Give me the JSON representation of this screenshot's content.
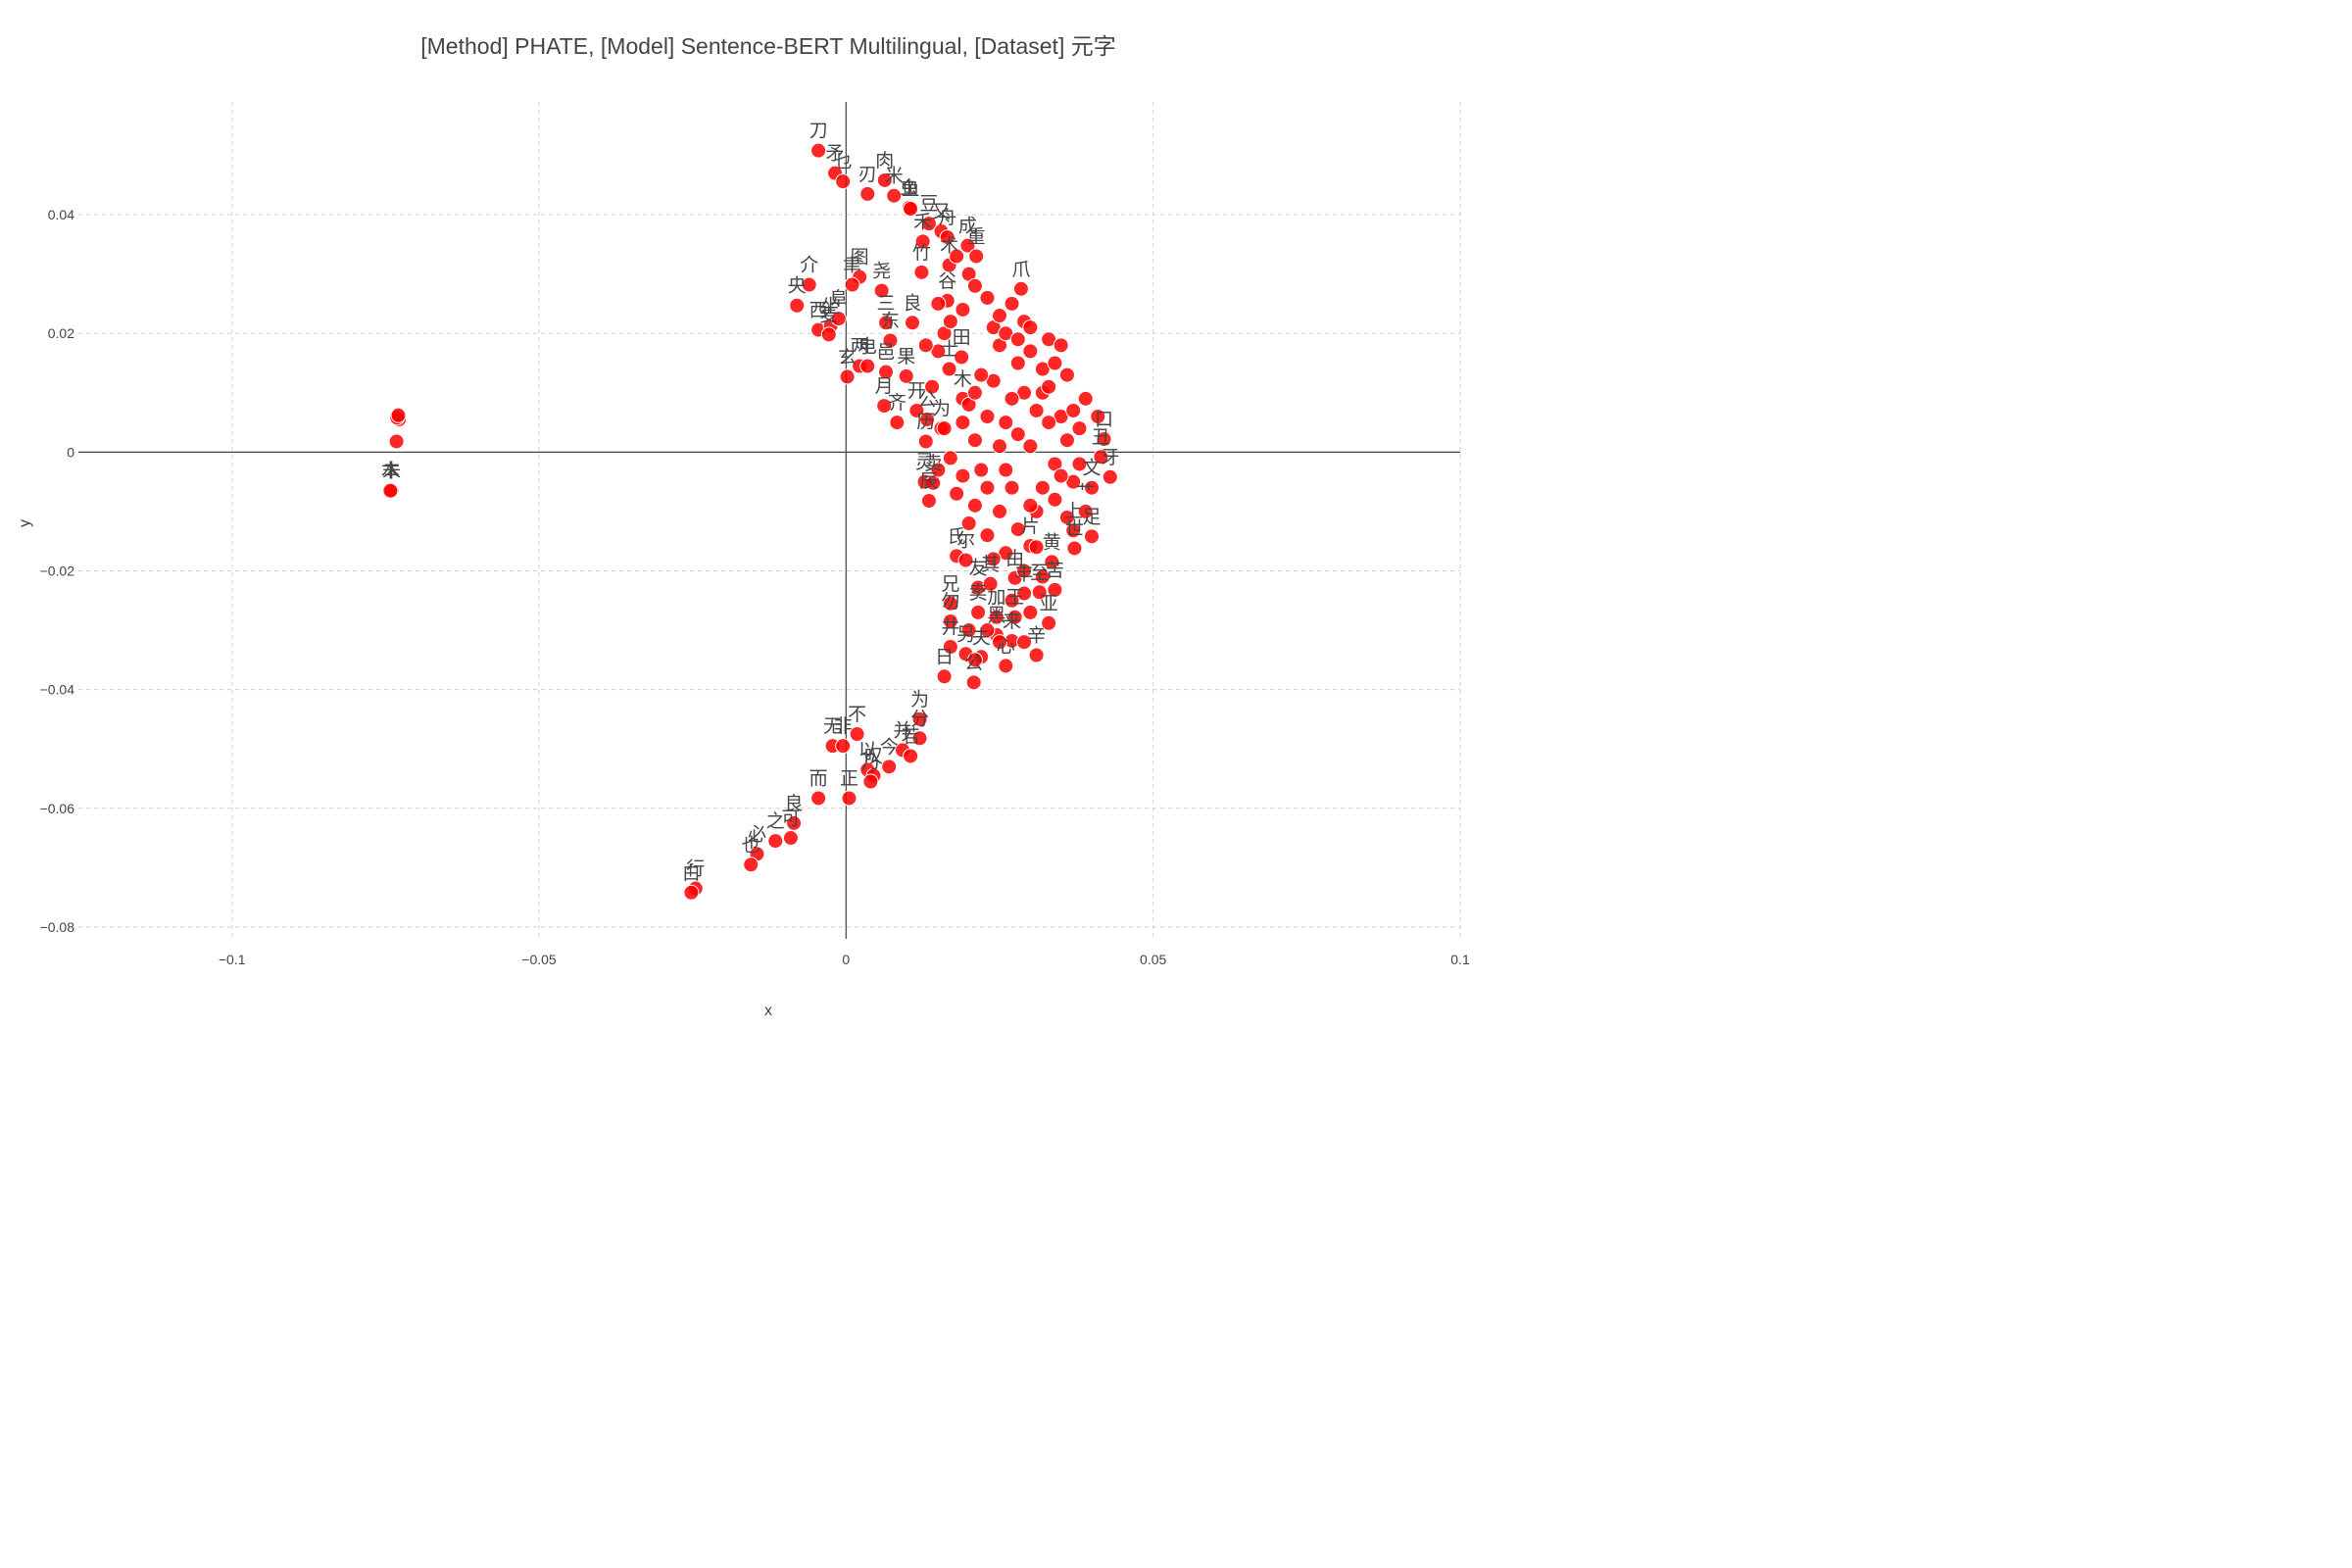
{
  "chart_data": {
    "type": "scatter",
    "title": "[Method] PHATE, [Model] Sentence-BERT Multilingual, [Dataset] 元字",
    "xlabel": "x",
    "ylabel": "y",
    "xlim": [
      -0.125,
      0.1
    ],
    "ylim": [
      -0.082,
      0.059
    ],
    "xticks": [
      -0.1,
      -0.05,
      0,
      0.05,
      0.1
    ],
    "xtick_labels": [
      "−0.1",
      "−0.05",
      "0",
      "0.05",
      "0.1"
    ],
    "yticks": [
      -0.08,
      -0.06,
      -0.04,
      -0.02,
      0,
      0.02,
      0.04
    ],
    "ytick_labels": [
      "−0.08",
      "−0.06",
      "−0.04",
      "−0.02",
      "0",
      "0.02",
      "0.04"
    ],
    "grid": true,
    "marker_color": "#ff0000",
    "points": [
      {
        "label": "刀",
        "x": -0.0045,
        "y": 0.0508
      },
      {
        "label": "矛",
        "x": -0.0018,
        "y": 0.047
      },
      {
        "label": "乜",
        "x": -0.0005,
        "y": 0.0456
      },
      {
        "label": "刃",
        "x": 0.0035,
        "y": 0.0435
      },
      {
        "label": "肉",
        "x": 0.0063,
        "y": 0.0458
      },
      {
        "label": "米",
        "x": 0.0078,
        "y": 0.0432
      },
      {
        "label": "虫",
        "x": 0.0103,
        "y": 0.0412
      },
      {
        "label": "鱼",
        "x": 0.0105,
        "y": 0.041
      },
      {
        "label": "豆",
        "x": 0.0135,
        "y": 0.0385
      },
      {
        "label": "禾",
        "x": 0.0125,
        "y": 0.0355
      },
      {
        "label": "又",
        "x": 0.0155,
        "y": 0.0372
      },
      {
        "label": "舟",
        "x": 0.0165,
        "y": 0.0362
      },
      {
        "label": "竹",
        "x": 0.0123,
        "y": 0.0303
      },
      {
        "label": "术",
        "x": 0.0168,
        "y": 0.0315
      },
      {
        "label": "成",
        "x": 0.0198,
        "y": 0.0348
      },
      {
        "label": "重",
        "x": 0.0212,
        "y": 0.033
      },
      {
        "label": "爪",
        "x": 0.0285,
        "y": 0.0275
      },
      {
        "label": "谷",
        "x": 0.0165,
        "y": 0.0255
      },
      {
        "label": "良",
        "x": 0.0108,
        "y": 0.0218
      },
      {
        "label": "介",
        "x": -0.006,
        "y": 0.0282
      },
      {
        "label": "央",
        "x": -0.008,
        "y": 0.0247
      },
      {
        "label": "西",
        "x": -0.0045,
        "y": 0.0206
      },
      {
        "label": "坐",
        "x": -0.0025,
        "y": 0.0213
      },
      {
        "label": "阜",
        "x": -0.0012,
        "y": 0.0225
      },
      {
        "label": "麦",
        "x": -0.0028,
        "y": 0.0198
      },
      {
        "label": "图",
        "x": 0.0022,
        "y": 0.0295
      },
      {
        "label": "聿",
        "x": 0.001,
        "y": 0.0282
      },
      {
        "label": "尧",
        "x": 0.0058,
        "y": 0.0272
      },
      {
        "label": "三",
        "x": 0.0065,
        "y": 0.0218
      },
      {
        "label": "东",
        "x": 0.0072,
        "y": 0.0188
      },
      {
        "label": "两",
        "x": 0.0022,
        "y": 0.0145
      },
      {
        "label": "电",
        "x": 0.0035,
        "y": 0.0145
      },
      {
        "label": "玄",
        "x": 0.0002,
        "y": 0.0127
      },
      {
        "label": "邑",
        "x": 0.0065,
        "y": 0.0135
      },
      {
        "label": "果",
        "x": 0.0098,
        "y": 0.0128
      },
      {
        "label": "月",
        "x": 0.0062,
        "y": 0.0078
      },
      {
        "label": "齐",
        "x": 0.0083,
        "y": 0.005
      },
      {
        "label": "开",
        "x": 0.0115,
        "y": 0.007
      },
      {
        "label": "公",
        "x": 0.0132,
        "y": 0.0055
      },
      {
        "label": "历",
        "x": 0.013,
        "y": 0.0018
      },
      {
        "label": "灵",
        "x": 0.0128,
        "y": -0.005
      },
      {
        "label": "辰",
        "x": 0.0135,
        "y": -0.0082
      },
      {
        "label": "卖",
        "x": 0.0142,
        "y": -0.0052
      },
      {
        "label": "为",
        "x": 0.0155,
        "y": 0.004
      },
      {
        "label": "木",
        "x": 0.019,
        "y": 0.009
      },
      {
        "label": "田",
        "x": 0.0188,
        "y": 0.016
      },
      {
        "label": "士",
        "x": 0.0168,
        "y": 0.014
      },
      {
        "label": "口",
        "x": 0.042,
        "y": 0.0022
      },
      {
        "label": "丑",
        "x": 0.0415,
        "y": -0.0008
      },
      {
        "label": "牙",
        "x": 0.043,
        "y": -0.0042
      },
      {
        "label": "文",
        "x": 0.04,
        "y": -0.006
      },
      {
        "label": "艹",
        "x": 0.039,
        "y": -0.01
      },
      {
        "label": "上",
        "x": 0.037,
        "y": -0.0132
      },
      {
        "label": "足",
        "x": 0.04,
        "y": -0.0142
      },
      {
        "label": "世",
        "x": 0.0372,
        "y": -0.0162
      },
      {
        "label": "黄",
        "x": 0.0335,
        "y": -0.0185
      },
      {
        "label": "片",
        "x": 0.03,
        "y": -0.0158
      },
      {
        "label": "氏",
        "x": 0.018,
        "y": -0.0175
      },
      {
        "label": "尔",
        "x": 0.0195,
        "y": -0.0182
      },
      {
        "label": "由",
        "x": 0.0275,
        "y": -0.0212
      },
      {
        "label": "友",
        "x": 0.0215,
        "y": -0.0228
      },
      {
        "label": "其",
        "x": 0.0235,
        "y": -0.0222
      },
      {
        "label": "丰",
        "x": 0.029,
        "y": -0.0238
      },
      {
        "label": "至",
        "x": 0.0315,
        "y": -0.0236
      },
      {
        "label": "苦",
        "x": 0.034,
        "y": -0.0232
      },
      {
        "label": "兄",
        "x": 0.017,
        "y": -0.0255
      },
      {
        "label": "勿",
        "x": 0.017,
        "y": -0.0285
      },
      {
        "label": "卖",
        "x": 0.0215,
        "y": -0.027
      },
      {
        "label": "加",
        "x": 0.0245,
        "y": -0.0278
      },
      {
        "label": "王",
        "x": 0.0275,
        "y": -0.0278
      },
      {
        "label": "亚",
        "x": 0.033,
        "y": -0.0288
      },
      {
        "label": "黑",
        "x": 0.0245,
        "y": -0.0308
      },
      {
        "label": "来",
        "x": 0.027,
        "y": -0.0318
      },
      {
        "label": "井",
        "x": 0.017,
        "y": -0.0328
      },
      {
        "label": "另",
        "x": 0.0195,
        "y": -0.034
      },
      {
        "label": "夫",
        "x": 0.022,
        "y": -0.0345
      },
      {
        "label": "心",
        "x": 0.026,
        "y": -0.036
      },
      {
        "label": "日",
        "x": 0.016,
        "y": -0.0378
      },
      {
        "label": "公",
        "x": 0.0208,
        "y": -0.0388
      },
      {
        "label": "辛",
        "x": 0.031,
        "y": -0.0342
      },
      {
        "label": "为",
        "x": 0.012,
        "y": -0.045
      },
      {
        "label": "分",
        "x": 0.012,
        "y": -0.0482
      },
      {
        "label": "不",
        "x": 0.0018,
        "y": -0.0475
      },
      {
        "label": "无",
        "x": -0.0022,
        "y": -0.0495
      },
      {
        "label": "非",
        "x": -0.0005,
        "y": -0.0495
      },
      {
        "label": "并",
        "x": 0.0092,
        "y": -0.0502
      },
      {
        "label": "以",
        "x": 0.0035,
        "y": -0.0535
      },
      {
        "label": "叹",
        "x": 0.0045,
        "y": -0.0545
      },
      {
        "label": "今",
        "x": 0.007,
        "y": -0.053
      },
      {
        "label": "若",
        "x": 0.0105,
        "y": -0.0512
      },
      {
        "label": "乃",
        "x": 0.004,
        "y": -0.0555
      },
      {
        "label": "而",
        "x": -0.0045,
        "y": -0.0583
      },
      {
        "label": "正",
        "x": 0.0005,
        "y": -0.0583
      },
      {
        "label": "良",
        "x": -0.0085,
        "y": -0.0625
      },
      {
        "label": "可",
        "x": -0.009,
        "y": -0.065
      },
      {
        "label": "之",
        "x": -0.0115,
        "y": -0.0655
      },
      {
        "label": "必",
        "x": -0.0145,
        "y": -0.0677
      },
      {
        "label": "也",
        "x": -0.0155,
        "y": -0.0695
      },
      {
        "label": "行",
        "x": -0.0245,
        "y": -0.0735
      },
      {
        "label": "白",
        "x": -0.0252,
        "y": -0.0742
      },
      {
        "label": "未",
        "x": -0.074,
        "y": -0.0065
      },
      {
        "label": "本",
        "x": -0.0742,
        "y": -0.0065
      },
      {
        "label": "",
        "x": -0.0732,
        "y": 0.0018
      },
      {
        "label": "",
        "x": -0.073,
        "y": 0.0057
      },
      {
        "label": "",
        "x": -0.0732,
        "y": 0.006
      },
      {
        "label": "",
        "x": -0.0728,
        "y": 0.0055
      },
      {
        "label": "",
        "x": -0.0731,
        "y": 0.0058
      },
      {
        "label": "",
        "x": -0.0729,
        "y": 0.0062
      },
      {
        "label": "",
        "x": 0.02,
        "y": 0.008
      },
      {
        "label": "",
        "x": 0.021,
        "y": 0.002
      },
      {
        "label": "",
        "x": 0.022,
        "y": -0.003
      },
      {
        "label": "",
        "x": 0.024,
        "y": 0.012
      },
      {
        "label": "",
        "x": 0.025,
        "y": 0.018
      },
      {
        "label": "",
        "x": 0.026,
        "y": 0.005
      },
      {
        "label": "",
        "x": 0.027,
        "y": -0.006
      },
      {
        "label": "",
        "x": 0.028,
        "y": 0.015
      },
      {
        "label": "",
        "x": 0.029,
        "y": 0.022
      },
      {
        "label": "",
        "x": 0.03,
        "y": 0.001
      },
      {
        "label": "",
        "x": 0.031,
        "y": -0.01
      },
      {
        "label": "",
        "x": 0.032,
        "y": 0.01
      },
      {
        "label": "",
        "x": 0.033,
        "y": 0.019
      },
      {
        "label": "",
        "x": 0.034,
        "y": -0.002
      },
      {
        "label": "",
        "x": 0.035,
        "y": 0.006
      },
      {
        "label": "",
        "x": 0.036,
        "y": 0.013
      },
      {
        "label": "",
        "x": 0.037,
        "y": -0.005
      },
      {
        "label": "",
        "x": 0.038,
        "y": 0.004
      },
      {
        "label": "",
        "x": 0.039,
        "y": 0.009
      },
      {
        "label": "",
        "x": 0.023,
        "y": 0.026
      },
      {
        "label": "",
        "x": 0.019,
        "y": 0.024
      },
      {
        "label": "",
        "x": 0.016,
        "y": 0.02
      },
      {
        "label": "",
        "x": 0.015,
        "y": 0.017
      },
      {
        "label": "",
        "x": 0.014,
        "y": 0.011
      },
      {
        "label": "",
        "x": 0.017,
        "y": -0.001
      },
      {
        "label": "",
        "x": 0.018,
        "y": -0.007
      },
      {
        "label": "",
        "x": 0.02,
        "y": -0.012
      },
      {
        "label": "",
        "x": 0.023,
        "y": -0.014
      },
      {
        "label": "",
        "x": 0.026,
        "y": -0.017
      },
      {
        "label": "",
        "x": 0.029,
        "y": -0.02
      },
      {
        "label": "",
        "x": 0.032,
        "y": -0.021
      },
      {
        "label": "",
        "x": 0.025,
        "y": -0.01
      },
      {
        "label": "",
        "x": 0.028,
        "y": -0.013
      },
      {
        "label": "",
        "x": 0.031,
        "y": -0.016
      },
      {
        "label": "",
        "x": 0.034,
        "y": -0.008
      },
      {
        "label": "",
        "x": 0.036,
        "y": -0.011
      },
      {
        "label": "",
        "x": 0.022,
        "y": 0.013
      },
      {
        "label": "",
        "x": 0.024,
        "y": 0.021
      },
      {
        "label": "",
        "x": 0.027,
        "y": 0.025
      },
      {
        "label": "",
        "x": 0.03,
        "y": 0.017
      },
      {
        "label": "",
        "x": 0.032,
        "y": 0.014
      },
      {
        "label": "",
        "x": 0.035,
        "y": 0.018
      },
      {
        "label": "",
        "x": 0.02,
        "y": 0.03
      },
      {
        "label": "",
        "x": 0.018,
        "y": 0.033
      },
      {
        "label": "",
        "x": 0.021,
        "y": 0.028
      },
      {
        "label": "",
        "x": 0.026,
        "y": 0.02
      },
      {
        "label": "",
        "x": 0.029,
        "y": 0.01
      },
      {
        "label": "",
        "x": 0.033,
        "y": 0.005
      },
      {
        "label": "",
        "x": 0.038,
        "y": -0.002
      },
      {
        "label": "",
        "x": 0.041,
        "y": 0.006
      },
      {
        "label": "",
        "x": 0.036,
        "y": 0.002
      },
      {
        "label": "",
        "x": 0.023,
        "y": 0.006
      },
      {
        "label": "",
        "x": 0.021,
        "y": 0.01
      },
      {
        "label": "",
        "x": 0.019,
        "y": 0.005
      },
      {
        "label": "",
        "x": 0.016,
        "y": 0.004
      },
      {
        "label": "",
        "x": 0.015,
        "y": -0.003
      },
      {
        "label": "",
        "x": 0.019,
        "y": -0.004
      },
      {
        "label": "",
        "x": 0.023,
        "y": -0.006
      },
      {
        "label": "",
        "x": 0.026,
        "y": -0.003
      },
      {
        "label": "",
        "x": 0.028,
        "y": 0.003
      },
      {
        "label": "",
        "x": 0.031,
        "y": 0.007
      },
      {
        "label": "",
        "x": 0.033,
        "y": 0.011
      },
      {
        "label": "",
        "x": 0.027,
        "y": 0.009
      },
      {
        "label": "",
        "x": 0.025,
        "y": 0.001
      },
      {
        "label": "",
        "x": 0.021,
        "y": -0.009
      },
      {
        "label": "",
        "x": 0.024,
        "y": -0.018
      },
      {
        "label": "",
        "x": 0.027,
        "y": -0.025
      },
      {
        "label": "",
        "x": 0.03,
        "y": -0.027
      },
      {
        "label": "",
        "x": 0.023,
        "y": -0.03
      },
      {
        "label": "",
        "x": 0.025,
        "y": -0.032
      },
      {
        "label": "",
        "x": 0.029,
        "y": -0.032
      },
      {
        "label": "",
        "x": 0.02,
        "y": -0.03
      },
      {
        "label": "",
        "x": 0.021,
        "y": -0.035
      },
      {
        "label": "",
        "x": 0.03,
        "y": 0.021
      },
      {
        "label": "",
        "x": 0.028,
        "y": 0.019
      },
      {
        "label": "",
        "x": 0.025,
        "y": 0.023
      },
      {
        "label": "",
        "x": 0.034,
        "y": 0.015
      },
      {
        "label": "",
        "x": 0.037,
        "y": 0.007
      },
      {
        "label": "",
        "x": 0.035,
        "y": -0.004
      },
      {
        "label": "",
        "x": 0.032,
        "y": -0.006
      },
      {
        "label": "",
        "x": 0.03,
        "y": -0.009
      },
      {
        "label": "",
        "x": 0.017,
        "y": 0.022
      },
      {
        "label": "",
        "x": 0.015,
        "y": 0.025
      },
      {
        "label": "",
        "x": 0.013,
        "y": 0.018
      }
    ]
  }
}
